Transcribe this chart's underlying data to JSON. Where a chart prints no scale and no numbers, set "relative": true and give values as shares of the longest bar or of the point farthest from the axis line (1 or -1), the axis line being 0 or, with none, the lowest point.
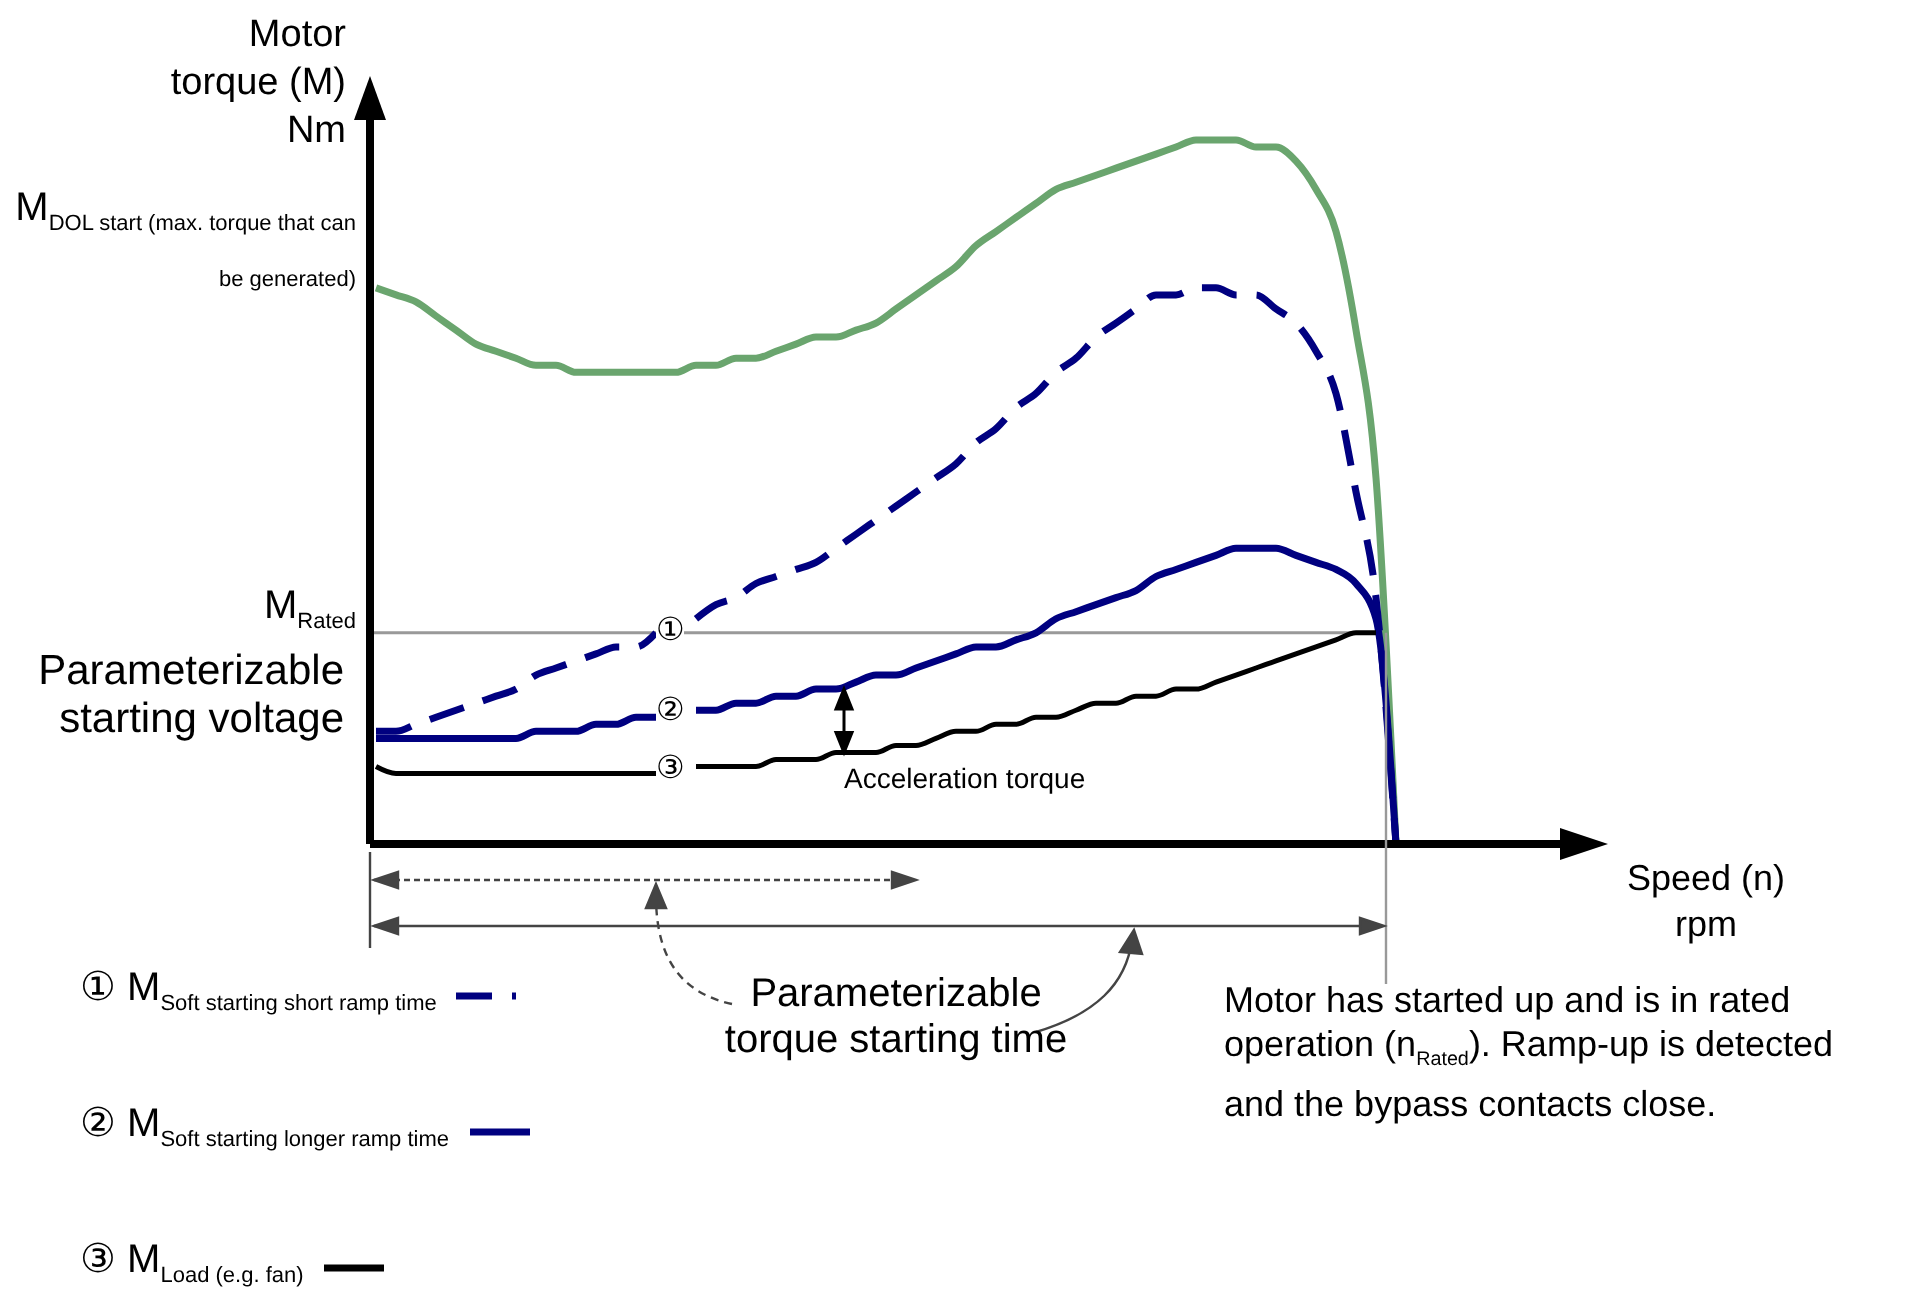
{
  "chart_data": {
    "type": "line",
    "relative": true,
    "ylabel": "Motor torque (M) Nm",
    "xlabel": "Speed (n) rpm",
    "categories": [
      null,
      null,
      null,
      null,
      null,
      null,
      null,
      null,
      null,
      null,
      null,
      null,
      null,
      null,
      null,
      null,
      null,
      null,
      null,
      null,
      null,
      null,
      null,
      null,
      null,
      null,
      null,
      null,
      null,
      null,
      null,
      null,
      null,
      null,
      null,
      null,
      null,
      null,
      null,
      null,
      null,
      null,
      null,
      null,
      null,
      null,
      null,
      null,
      null,
      null,
      null,
      null,
      null,
      null,
      null,
      null,
      null,
      null,
      null,
      null,
      null
    ],
    "series": [
      {
        "color": "#6aa56e",
        "line_style": "solid",
        "values": [
          0.79,
          0.78,
          0.77,
          0.75,
          0.73,
          0.71,
          0.7,
          0.69,
          0.68,
          0.68,
          0.67,
          0.67,
          0.67,
          0.67,
          0.67,
          0.67,
          0.68,
          0.68,
          0.69,
          0.69,
          0.7,
          0.71,
          0.72,
          0.72,
          0.73,
          0.74,
          0.76,
          0.78,
          0.8,
          0.82,
          0.85,
          0.87,
          0.89,
          0.91,
          0.93,
          0.94,
          0.95,
          0.96,
          0.97,
          0.98,
          0.99,
          1.0,
          1.0,
          1.0,
          0.99,
          0.99,
          0.97,
          0.93,
          0.87,
          0.73,
          0.52,
          0,
          null,
          null,
          null,
          null,
          null,
          null,
          null,
          null,
          null
        ]
      },
      {
        "name": "① M$_{Soft starting short ramp time}$",
        "color": "#000080",
        "line_style": "dashed",
        "values": [
          0.16,
          0.16,
          0.17,
          0.18,
          0.19,
          0.2,
          0.21,
          0.22,
          0.24,
          0.25,
          0.26,
          0.27,
          0.28,
          0.28,
          0.3,
          null,
          0.32,
          0.34,
          0.35,
          0.37,
          0.38,
          0.39,
          0.4,
          0.42,
          0.44,
          0.46,
          0.48,
          0.5,
          0.52,
          0.54,
          0.57,
          0.59,
          0.62,
          0.64,
          0.67,
          0.69,
          0.72,
          0.74,
          0.76,
          0.78,
          0.78,
          0.79,
          0.79,
          0.78,
          0.78,
          0.76,
          0.74,
          0.7,
          0.64,
          0.5,
          0.35,
          0,
          null,
          null,
          null,
          null,
          null,
          null,
          null,
          null,
          null
        ]
      },
      {
        "name": "② M$_{Soft starting longer ramp time}$",
        "color": "#000080",
        "line_style": "solid",
        "values": [
          0.15,
          0.15,
          0.15,
          0.15,
          0.15,
          0.15,
          0.15,
          0.15,
          0.16,
          0.16,
          0.16,
          0.17,
          0.17,
          0.18,
          0.18,
          null,
          0.19,
          0.19,
          0.2,
          0.2,
          0.21,
          0.21,
          0.22,
          0.22,
          0.23,
          0.24,
          0.24,
          0.25,
          0.26,
          0.27,
          0.28,
          0.28,
          0.29,
          0.3,
          0.32,
          0.33,
          0.34,
          0.35,
          0.36,
          0.38,
          0.39,
          0.4,
          0.41,
          0.42,
          0.42,
          0.42,
          0.41,
          0.4,
          0.39,
          0.37,
          0.32,
          0,
          null,
          null,
          null,
          null,
          null,
          null,
          null,
          null,
          null
        ]
      },
      {
        "name": "③ M$_{Load (e.g. fan)}$",
        "color": "#000000",
        "line_style": "solid",
        "values": [
          0.11,
          0.1,
          0.1,
          0.1,
          0.1,
          0.1,
          0.1,
          0.1,
          0.1,
          0.1,
          0.1,
          0.1,
          0.1,
          0.1,
          0.1,
          null,
          0.11,
          0.11,
          0.11,
          0.11,
          0.12,
          0.12,
          0.12,
          0.13,
          0.13,
          0.13,
          0.14,
          0.14,
          0.15,
          0.16,
          0.16,
          0.17,
          0.17,
          0.18,
          0.18,
          0.19,
          0.2,
          0.2,
          0.21,
          0.21,
          0.22,
          0.22,
          0.23,
          0.24,
          0.25,
          0.26,
          0.27,
          0.28,
          0.29,
          0.3,
          0.3,
          null,
          null,
          null,
          null,
          null,
          null,
          null,
          null,
          null,
          null
        ]
      }
    ],
    "ref_lines": [
      {
        "axis": "y",
        "value": 0.3,
        "label": "M$_{Rated}$",
        "color": "#999999"
      }
    ],
    "annotations": [
      "M$_{DOL start (max. torque that can be generated)}$",
      "Parameterizable starting voltage",
      "Acceleration torque",
      "Parameterizable torque starting time",
      "Motor has started up and is in rated operation (n$_{Rated}$). Ramp-up is detected and the bypass contacts close.",
      "①",
      "②",
      "③"
    ],
    "legend": "bottom left",
    "marker": "none"
  }
}
